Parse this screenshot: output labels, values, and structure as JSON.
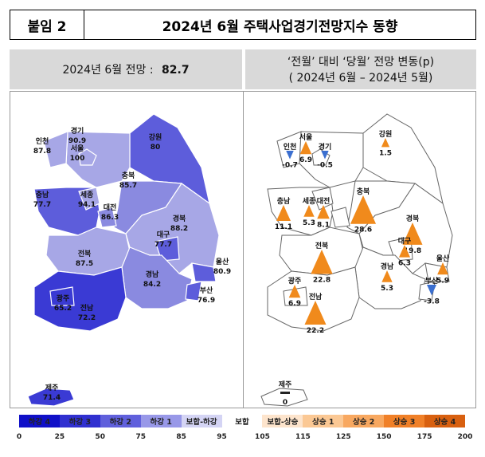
{
  "header": {
    "tag": "붙임 2",
    "title": "2024년 6월 주택사업경기전망지수 동향"
  },
  "left_panel": {
    "headline_prefix": "2024년 6월 전망 :",
    "headline_value": "82.7"
  },
  "right_panel": {
    "headline_line1": "‘전월’ 대비 ‘당월’ 전망 변동(p)",
    "headline_line2": "( 2024년 6월 – 2024년 5월)"
  },
  "regions_index": [
    {
      "name": "인천",
      "value": "87.8",
      "color": "#a7a7e6"
    },
    {
      "name": "경기",
      "value": "90.9",
      "color": "#a7a7e6"
    },
    {
      "name": "서울",
      "value": "100",
      "color": "#a7a7e6"
    },
    {
      "name": "강원",
      "value": "80",
      "color": "#5d5ddb"
    },
    {
      "name": "충북",
      "value": "85.7",
      "color": "#8a8ae0"
    },
    {
      "name": "충남",
      "value": "77.7",
      "color": "#5d5ddb"
    },
    {
      "name": "세종",
      "value": "94.1",
      "color": "#a7a7e6"
    },
    {
      "name": "대전",
      "value": "86.3",
      "color": "#8a8ae0"
    },
    {
      "name": "경북",
      "value": "88.2",
      "color": "#a7a7e6"
    },
    {
      "name": "대구",
      "value": "77.7",
      "color": "#5d5ddb"
    },
    {
      "name": "전북",
      "value": "87.5",
      "color": "#a7a7e6"
    },
    {
      "name": "경남",
      "value": "84.2",
      "color": "#8a8ae0"
    },
    {
      "name": "울산",
      "value": "80.9",
      "color": "#5d5ddb"
    },
    {
      "name": "부산",
      "value": "76.9",
      "color": "#5d5ddb"
    },
    {
      "name": "광주",
      "value": "65.2",
      "color": "#3a3ad4"
    },
    {
      "name": "전남",
      "value": "72.2",
      "color": "#3a3ad4"
    },
    {
      "name": "제주",
      "value": "71.4",
      "color": "#3a3ad4"
    }
  ],
  "regions_change": [
    {
      "name": "서울",
      "value": "6.9",
      "dir": "up"
    },
    {
      "name": "인천",
      "value": "-0.7",
      "dir": "down"
    },
    {
      "name": "경기",
      "value": "-0.5",
      "dir": "down"
    },
    {
      "name": "강원",
      "value": "1.5",
      "dir": "up"
    },
    {
      "name": "충남",
      "value": "11.1",
      "dir": "up"
    },
    {
      "name": "세종",
      "value": "5.3",
      "dir": "up"
    },
    {
      "name": "대전",
      "value": "8.1",
      "dir": "up"
    },
    {
      "name": "충북",
      "value": "28.6",
      "dir": "up"
    },
    {
      "name": "경북",
      "value": "19.8",
      "dir": "up"
    },
    {
      "name": "대구",
      "value": "6.3",
      "dir": "up"
    },
    {
      "name": "전북",
      "value": "22.8",
      "dir": "up"
    },
    {
      "name": "경남",
      "value": "5.3",
      "dir": "up"
    },
    {
      "name": "울산",
      "value": "5.9",
      "dir": "up"
    },
    {
      "name": "부산",
      "value": "-3.8",
      "dir": "down"
    },
    {
      "name": "광주",
      "value": "6.9",
      "dir": "up"
    },
    {
      "name": "전남",
      "value": "22.2",
      "dir": "up"
    },
    {
      "name": "제주",
      "value": "0",
      "dir": "none"
    }
  ],
  "legend": [
    {
      "label": "하강 4",
      "color": "#1010c8"
    },
    {
      "label": "하강 3",
      "color": "#3030d0"
    },
    {
      "label": "하강 2",
      "color": "#6060dc"
    },
    {
      "label": "하강 1",
      "color": "#9898e8"
    },
    {
      "label": "보합-하강",
      "color": "#d4d4f4"
    },
    {
      "label": "보합",
      "color": "#ffffff"
    },
    {
      "label": "보합-상승",
      "color": "#fde4cc"
    },
    {
      "label": "상승 1",
      "color": "#fbc894"
    },
    {
      "label": "상승 2",
      "color": "#f8a860"
    },
    {
      "label": "상승 3",
      "color": "#f08028"
    },
    {
      "label": "상승 4",
      "color": "#d86010"
    }
  ],
  "legend_ticks": [
    "0",
    "25",
    "50",
    "75",
    "85",
    "95",
    "105",
    "115",
    "125",
    "150",
    "175",
    "200"
  ],
  "colors": {
    "up": "#f08a1c",
    "down": "#3b6fd0",
    "none": "#222222"
  }
}
